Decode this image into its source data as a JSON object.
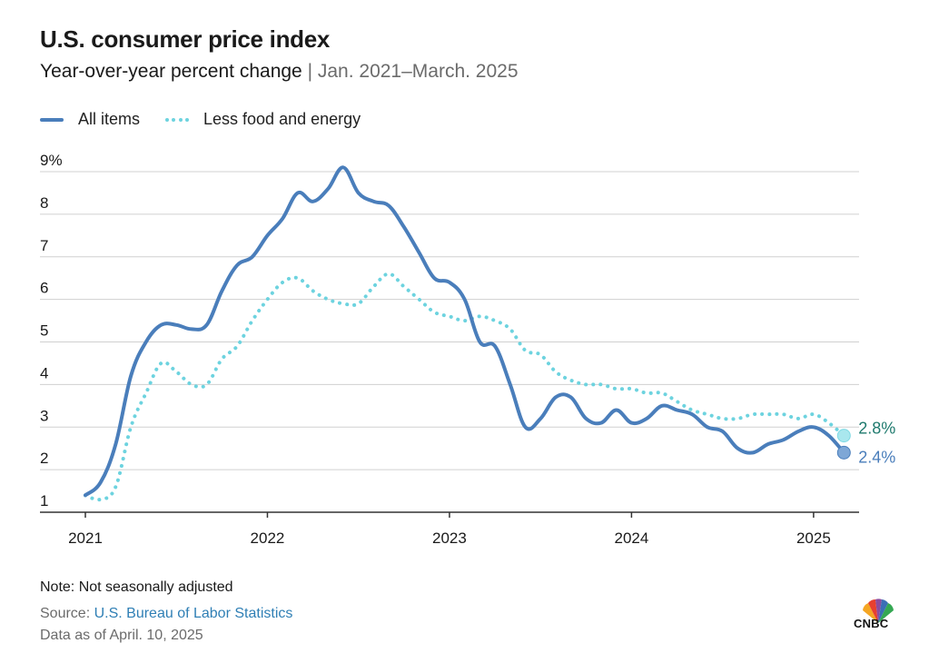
{
  "title": "U.S. consumer price index",
  "subtitle": "Year-over-year percent change",
  "subtitle_sep": " | ",
  "subtitle_range": "Jan. 2021–March. 2025",
  "legend": {
    "all_items": "All items",
    "core": "Less food and energy"
  },
  "footer": {
    "note": "Note: Not seasonally adjusted",
    "source_label": "Source: ",
    "source_link": "U.S. Bureau of Labor Statistics",
    "as_of": "Data as of April. 10, 2025"
  },
  "logo": {
    "text": "CNBC"
  },
  "colors": {
    "all_items": "#4a7ebb",
    "core": "#6dd3df",
    "core_label": "#1f7a6e",
    "grid": "#d0d0d0",
    "axis": "#333333"
  },
  "chart_data": {
    "type": "line",
    "x_start": "2021-01",
    "x_end": "2025-03",
    "xtick_labels": [
      "2021",
      "2022",
      "2023",
      "2024",
      "2025"
    ],
    "ytick_labels": [
      "9%",
      "8",
      "7",
      "6",
      "5",
      "4",
      "3",
      "2",
      "1"
    ],
    "ylim": [
      1,
      9
    ],
    "grid": true,
    "legend_position": "top-left",
    "series": [
      {
        "name": "All items",
        "style": "solid",
        "end_label": "2.4%",
        "values": [
          1.4,
          1.7,
          2.6,
          4.2,
          5.0,
          5.4,
          5.4,
          5.3,
          5.4,
          6.2,
          6.8,
          7.0,
          7.5,
          7.9,
          8.5,
          8.3,
          8.6,
          9.1,
          8.5,
          8.3,
          8.2,
          7.7,
          7.1,
          6.5,
          6.4,
          6.0,
          5.0,
          4.9,
          4.0,
          3.0,
          3.2,
          3.7,
          3.7,
          3.2,
          3.1,
          3.4,
          3.1,
          3.2,
          3.5,
          3.4,
          3.3,
          3.0,
          2.9,
          2.5,
          2.4,
          2.6,
          2.7,
          2.9,
          3.0,
          2.8,
          2.4
        ]
      },
      {
        "name": "Less food and energy",
        "style": "dotted",
        "end_label": "2.8%",
        "values": [
          1.4,
          1.3,
          1.6,
          3.0,
          3.8,
          4.5,
          4.3,
          4.0,
          4.0,
          4.6,
          4.9,
          5.5,
          6.0,
          6.4,
          6.5,
          6.2,
          6.0,
          5.9,
          5.9,
          6.3,
          6.6,
          6.3,
          6.0,
          5.7,
          5.6,
          5.5,
          5.6,
          5.5,
          5.3,
          4.8,
          4.7,
          4.3,
          4.1,
          4.0,
          4.0,
          3.9,
          3.9,
          3.8,
          3.8,
          3.6,
          3.4,
          3.3,
          3.2,
          3.2,
          3.3,
          3.3,
          3.3,
          3.2,
          3.3,
          3.1,
          2.8
        ]
      }
    ]
  }
}
